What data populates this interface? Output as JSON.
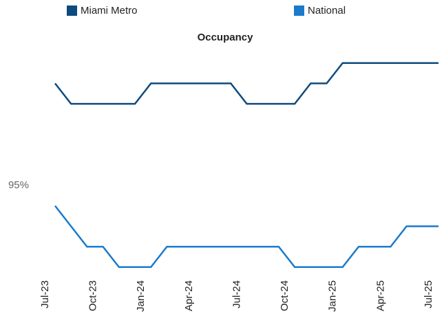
{
  "chart_data": {
    "type": "line",
    "title": "Occupancy",
    "categories": [
      "Jul-23",
      null,
      null,
      "Oct-23",
      null,
      null,
      "Jan-24",
      null,
      null,
      "Apr-24",
      null,
      null,
      "Jul-24",
      null,
      null,
      "Oct-24",
      null,
      null,
      "Jan-25",
      null,
      null,
      "Apr-25",
      null,
      null,
      "Jul-25"
    ],
    "series": [
      {
        "name": "Miami Metro",
        "color": "#0d4a7e",
        "values": [
          95.5,
          95.4,
          95.4,
          95.4,
          95.4,
          95.4,
          95.5,
          95.5,
          95.5,
          95.5,
          95.5,
          95.5,
          95.4,
          95.4,
          95.4,
          95.4,
          95.5,
          95.5,
          95.6,
          95.6,
          95.6,
          95.6,
          95.6,
          95.6,
          95.6
        ]
      },
      {
        "name": "National",
        "color": "#1a7acb",
        "values": [
          94.9,
          94.8,
          94.7,
          94.7,
          94.6,
          94.6,
          94.6,
          94.7,
          94.7,
          94.7,
          94.7,
          94.7,
          94.7,
          94.7,
          94.7,
          94.6,
          94.6,
          94.6,
          94.6,
          94.7,
          94.7,
          94.7,
          94.8,
          94.8,
          94.8
        ]
      }
    ],
    "ylim": [
      94.5,
      95.7
    ],
    "yticks": [
      {
        "value": 95,
        "label": "95%"
      }
    ],
    "legend": "top"
  }
}
